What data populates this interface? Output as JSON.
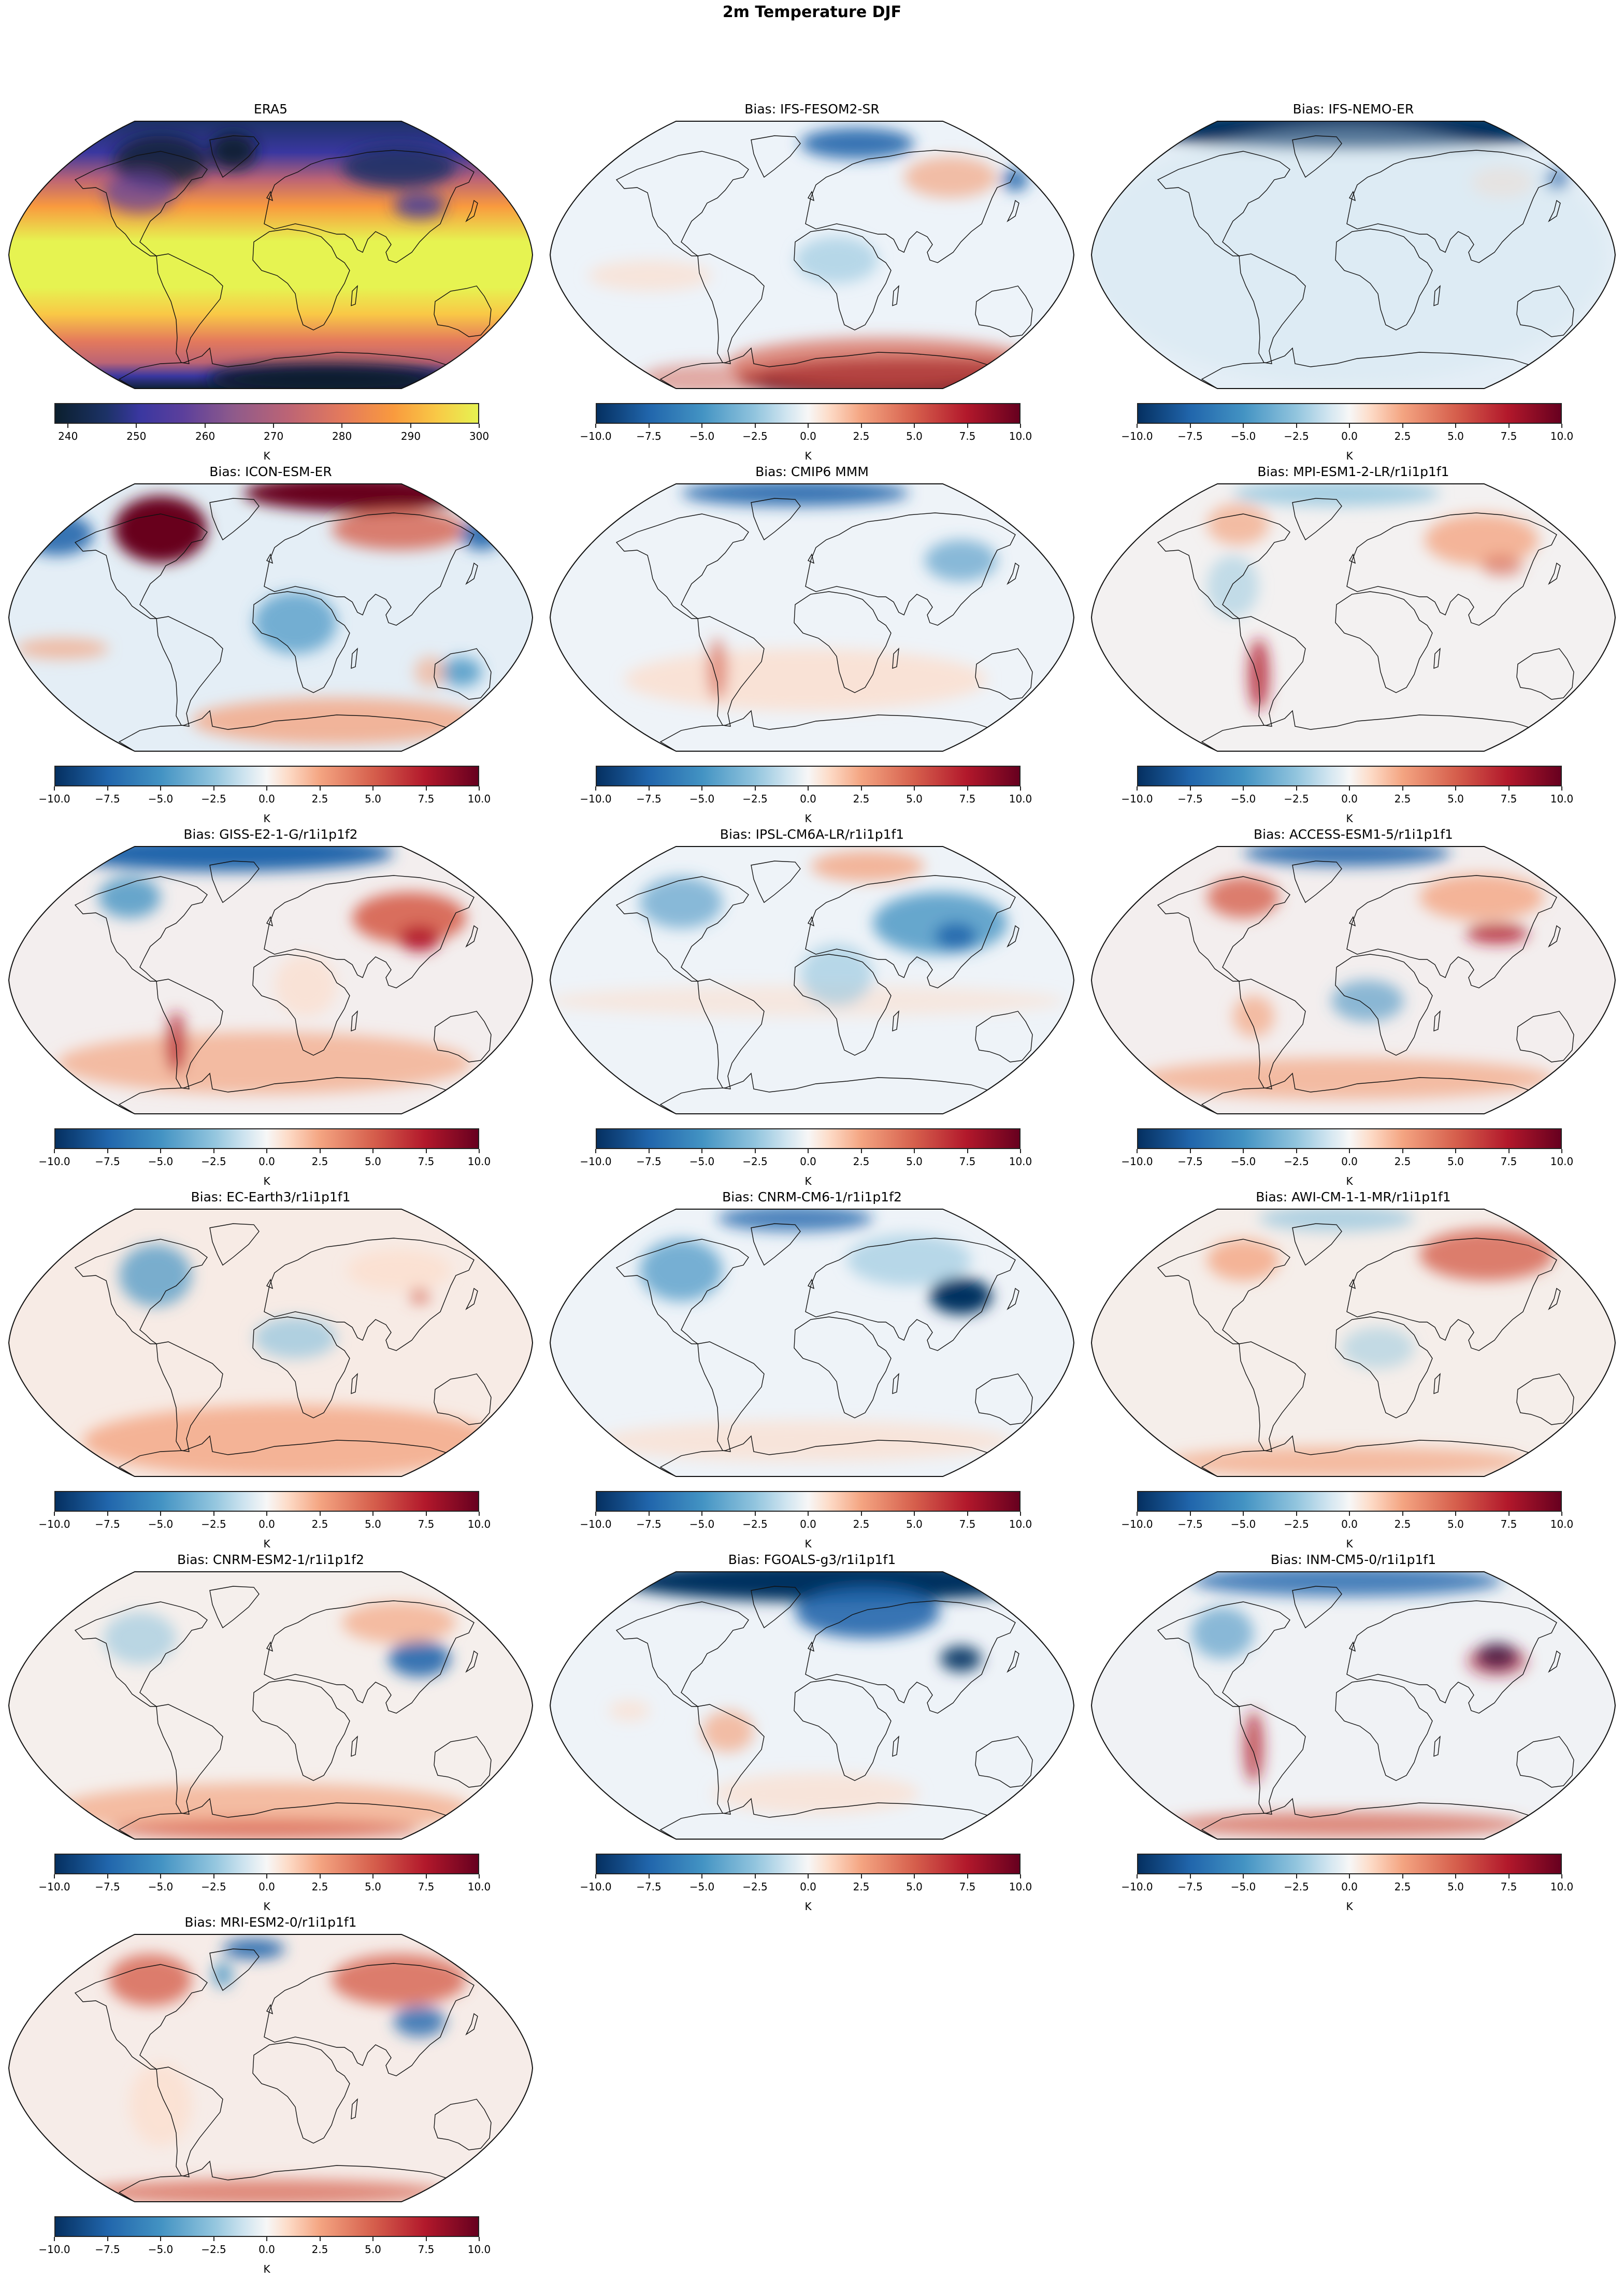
{
  "figure": {
    "title": "2m Temperature DJF"
  },
  "colorbars": {
    "era5": {
      "ticks": [
        "240",
        "250",
        "260",
        "270",
        "280",
        "290",
        "300"
      ],
      "tick_positions": [
        0.032,
        0.193,
        0.355,
        0.516,
        0.677,
        0.839,
        1.0
      ],
      "unit": "K",
      "gradient": "linear-gradient(90deg,#0b1f2e 0%,#1c3266 12%,#3a37a0 20%,#5b3f9c 30%,#8e5a8b 42%,#bc6475 55%,#e47a5c 68%,#f99a3e 80%,#f9c846 90%,#e6f351 100%)"
    },
    "bias": {
      "ticks": [
        "−10.0",
        "−7.5",
        "−5.0",
        "−2.5",
        "0.0",
        "2.5",
        "5.0",
        "7.5",
        "10.0"
      ],
      "tick_positions": [
        0.0,
        0.125,
        0.25,
        0.375,
        0.5,
        0.625,
        0.75,
        0.875,
        1.0
      ],
      "unit": "K",
      "gradient": "linear-gradient(90deg,#053061 0%,#2166ac 12.5%,#4393c3 25%,#92c5de 37.5%,#d1e5f0 45%,#f7f7f7 50%,#fddbc7 55%,#f4a582 62.5%,#d6604d 75%,#b2182b 87.5%,#67001f 100%)"
    }
  },
  "panels": [
    {
      "title": "ERA5",
      "cmap": "era5",
      "style": "era5"
    },
    {
      "title": "Bias: IFS-FESOM2-SR",
      "cmap": "bias",
      "style": "fesom"
    },
    {
      "title": "Bias: IFS-NEMO-ER",
      "cmap": "bias",
      "style": "nemo"
    },
    {
      "title": "Bias: ICON-ESM-ER",
      "cmap": "bias",
      "style": "icon"
    },
    {
      "title": "Bias: CMIP6 MMM",
      "cmap": "bias",
      "style": "mmm"
    },
    {
      "title": "Bias: MPI-ESM1-2-LR/r1i1p1f1",
      "cmap": "bias",
      "style": "mpi"
    },
    {
      "title": "Bias: GISS-E2-1-G/r1i1p1f2",
      "cmap": "bias",
      "style": "giss"
    },
    {
      "title": "Bias: IPSL-CM6A-LR/r1i1p1f1",
      "cmap": "bias",
      "style": "ipsl"
    },
    {
      "title": "Bias: ACCESS-ESM1-5/r1i1p1f1",
      "cmap": "bias",
      "style": "access"
    },
    {
      "title": "Bias: EC-Earth3/r1i1p1f1",
      "cmap": "bias",
      "style": "ecearth"
    },
    {
      "title": "Bias: CNRM-CM6-1/r1i1p1f2",
      "cmap": "bias",
      "style": "cnrmcm"
    },
    {
      "title": "Bias: AWI-CM-1-1-MR/r1i1p1f1",
      "cmap": "bias",
      "style": "awi"
    },
    {
      "title": "Bias: CNRM-ESM2-1/r1i1p1f2",
      "cmap": "bias",
      "style": "cnrmesm"
    },
    {
      "title": "Bias: FGOALS-g3/r1i1p1f1",
      "cmap": "bias",
      "style": "fgoals"
    },
    {
      "title": "Bias: INM-CM5-0/r1i1p1f1",
      "cmap": "bias",
      "style": "inm"
    },
    {
      "title": "Bias: MRI-ESM2-0/r1i1p1f1",
      "cmap": "bias",
      "style": "mri"
    }
  ],
  "chart_data": [
    {
      "type": "heatmap",
      "title": "ERA5",
      "projection": "Robinson (global)",
      "colorbar": {
        "label": "K",
        "range": [
          238,
          300
        ],
        "ticks": [
          240,
          250,
          260,
          270,
          280,
          290,
          300
        ],
        "colormap": "thermal (dark navy → purple → orange → yellow)"
      },
      "description": "DJF 2m temperature climatology; warmest (~300 K) in tropics, coldest (~238 K) over Greenland, Siberia, Antarctica"
    },
    {
      "type": "heatmap",
      "title_prefix": "Bias: ",
      "projection": "Robinson (global)",
      "colorbar": {
        "label": "K",
        "range": [
          -10,
          10
        ],
        "ticks": [
          -10.0,
          -7.5,
          -5.0,
          -2.5,
          0.0,
          2.5,
          5.0,
          7.5,
          10.0
        ],
        "colormap": "RdBu_r (blue negative, red positive)"
      },
      "series": [
        {
          "name": "IFS-FESOM2-SR",
          "features": "strong warm bias (~+10 K) over Antarctica; cold bias (~-8 K) Barents/Greenland sea and Sea of Okhotsk; slight cold bias over Sahara"
        },
        {
          "name": "IFS-NEMO-ER",
          "features": "strong cold bias (~-10 K) over Arctic ocean; cold Okhotsk; weak cold bias elsewhere"
        },
        {
          "name": "ICON-ESM-ER",
          "features": "strong warm bias (~+10 K) over Canada and Arctic/Barents; cold bias over Africa, Australia, Alaska"
        },
        {
          "name": "CMIP6 MMM",
          "features": "cold bias over Arctic/Greenland sea and Tibet; mild warm bias southern oceans"
        },
        {
          "name": "MPI-ESM1-2-LR/r1i1p1f1",
          "features": "warm bias over Siberia and Canada; Andes warm streak"
        },
        {
          "name": "GISS-E2-1-G/r1i1p1f2",
          "features": "strong cold Arctic; warm bias over central Asia and Tibet; warm Southern Ocean"
        },
        {
          "name": "IPSL-CM6A-LR/r1i1p1f1",
          "features": "cold bias over Eurasia/Tibet and North America; warm Barents"
        },
        {
          "name": "ACCESS-ESM1-5/r1i1p1f1",
          "features": "warm bias Canada and Siberia; cold Arctic ocean; Himalaya dipole"
        },
        {
          "name": "EC-Earth3/r1i1p1f1",
          "features": "widespread warm Southern Ocean; cold Canada and Sahara"
        },
        {
          "name": "CNRM-CM6-1/r1i1p1f2",
          "features": "cold bias over Tibet (~-10 K) and North America; mixed elsewhere"
        },
        {
          "name": "AWI-CM-1-1-MR/r1i1p1f1",
          "features": "warm bias over Siberia and Canada; warm Antarctica"
        },
        {
          "name": "CNRM-ESM2-1/r1i1p1f2",
          "features": "cold bias Tibet; warm Southern Ocean and Antarctica; warm Siberia"
        },
        {
          "name": "FGOALS-g3/r1i1p1f1",
          "features": "very strong cold bias (~-10 K) over Arctic and northern Europe; cold Tibet; warm Amazon"
        },
        {
          "name": "INM-CM5-0/r1i1p1f1",
          "features": "cold Tibet with warm Himalayan edge; Andes warm streak; warm Antarctic coast"
        },
        {
          "name": "MRI-ESM2-0/r1i1p1f1",
          "features": "warm bias over Siberia and Canada/Alaska; cold Tibet and SE Asia; warm Antarctica"
        }
      ]
    }
  ]
}
